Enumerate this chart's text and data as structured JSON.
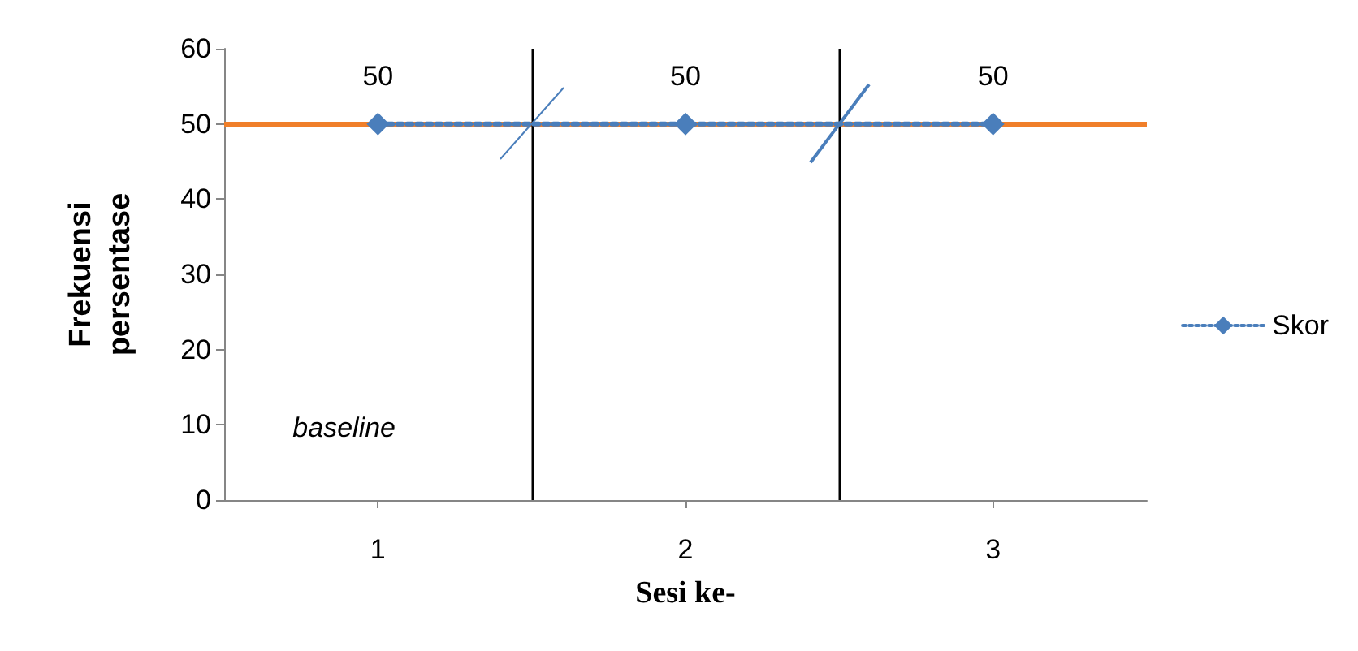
{
  "chart_data": {
    "type": "line",
    "xlabel": "Sesi ke-",
    "ylabel": "Frekuensi\npersentase",
    "x": [
      1,
      2,
      3
    ],
    "xlim": [
      0.5,
      3.5
    ],
    "xticks": [
      1,
      2,
      3
    ],
    "ylim": [
      0,
      60
    ],
    "yticks": [
      0,
      10,
      20,
      30,
      40,
      50,
      60
    ],
    "series": [
      {
        "name": "Skor",
        "color": "#4a7ebb",
        "values": [
          50,
          50,
          50
        ]
      }
    ],
    "ref_lines": [
      {
        "axis": "y",
        "value": 50,
        "color": "#f07f2a",
        "line_style": "solid"
      },
      {
        "axis": "x",
        "value": 1.5,
        "color": "#000000",
        "line_style": "solid"
      },
      {
        "axis": "x",
        "value": 2.5,
        "color": "#000000",
        "line_style": "solid"
      }
    ],
    "annotations": [
      "baseline"
    ],
    "data_labels": true,
    "grid": false,
    "legend": "right",
    "marker": "diamond",
    "line_style": "dotted"
  }
}
